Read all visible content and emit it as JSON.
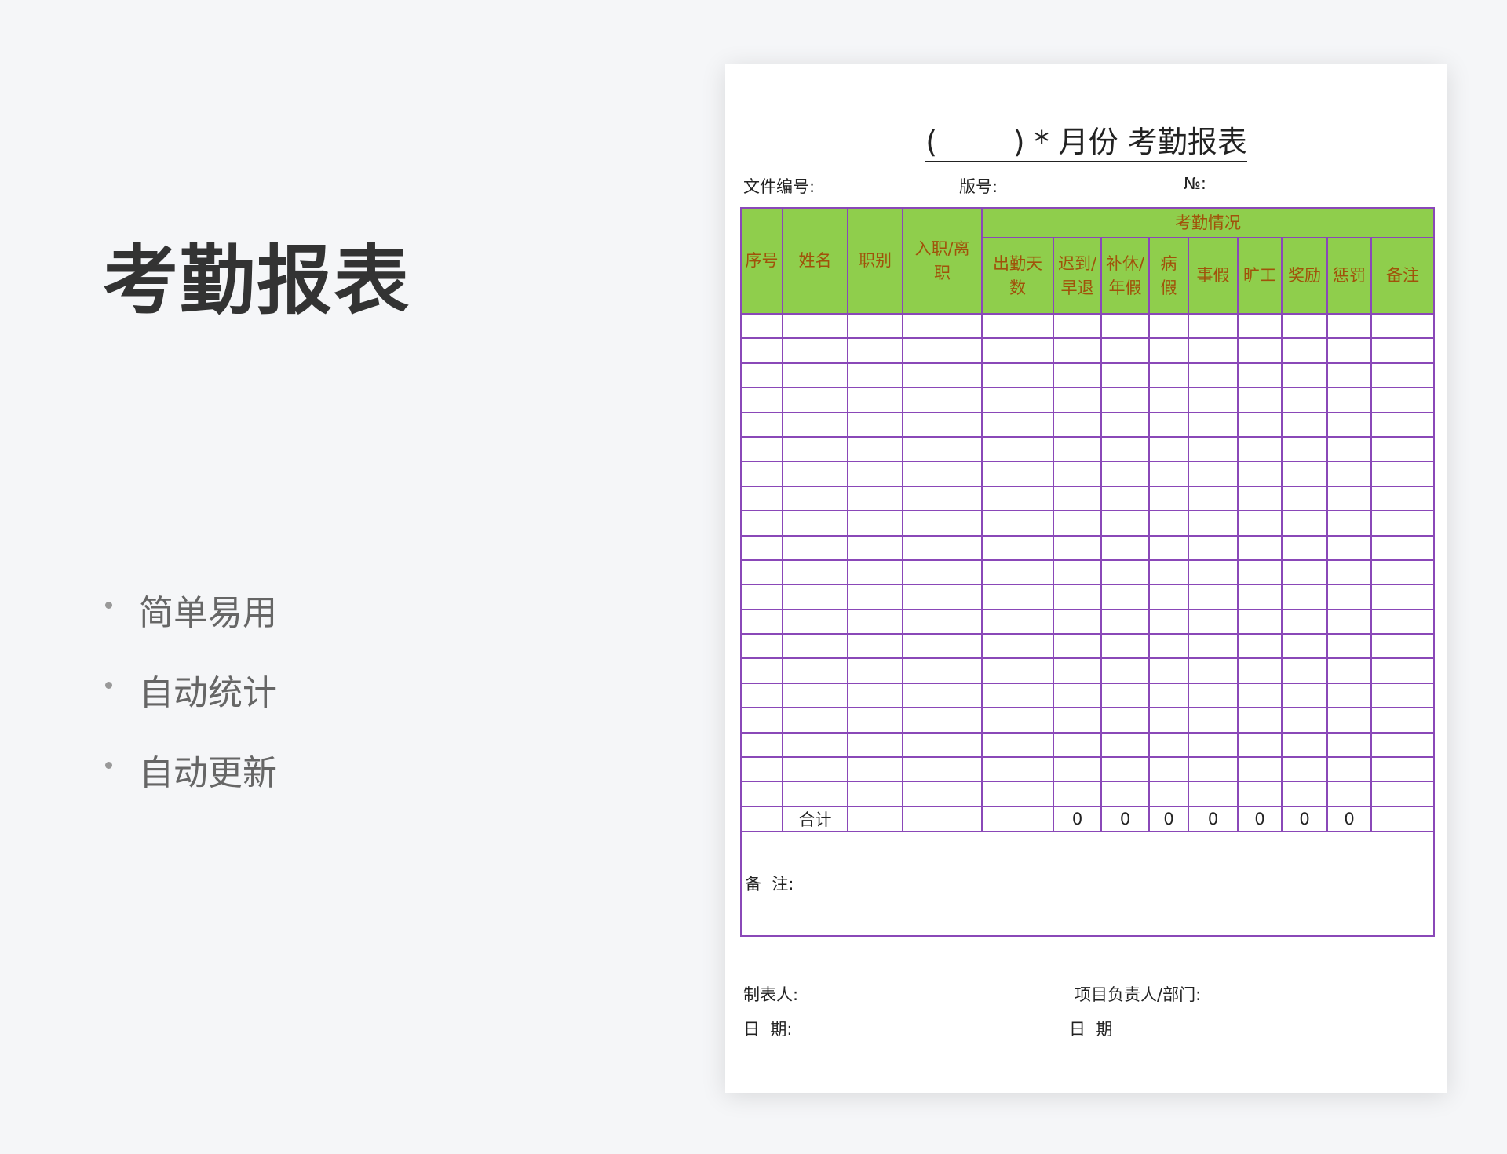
{
  "slide": {
    "title": "考勤报表",
    "bullets": [
      "简单易用",
      "自动统计",
      "自动更新"
    ]
  },
  "document": {
    "title": "(        ) * 月份 考勤报表",
    "meta": {
      "file_no": "文件编号:",
      "version": "版号:",
      "number": "№:"
    },
    "table": {
      "group_header": "考勤情况",
      "headers": [
        "序号",
        "姓名",
        "职别",
        "入职/离职",
        "出勤天数",
        "迟到/早退",
        "补休/年假",
        "病假",
        "事假",
        "旷工",
        "奖励",
        "惩罚",
        "备注"
      ],
      "empty_rows": 20,
      "total_label": "合计",
      "totals": [
        "0",
        "0",
        "0",
        "0",
        "0",
        "0",
        "0"
      ],
      "remarks_label": "备  注:"
    },
    "signatures": {
      "maker": "制表人:",
      "manager": "项目负责人/部门:",
      "date_left": "日  期:",
      "date_right": "日  期"
    }
  },
  "colors": {
    "header_bg": "#8fce4c",
    "header_text": "#a0520a",
    "grid": "#8a48b8",
    "background": "#f5f6f8"
  }
}
